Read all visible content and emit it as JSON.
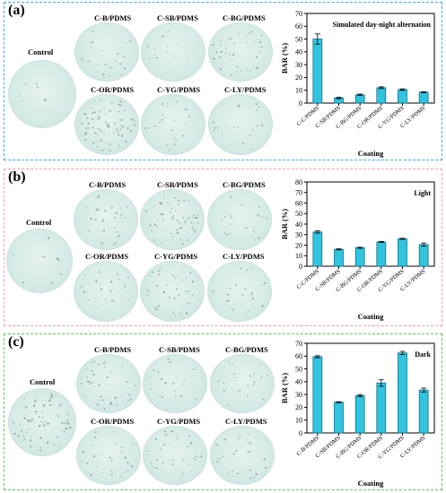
{
  "colors": {
    "panel_a_border": "#3fa9e6",
    "panel_b_border": "#ef9bbf",
    "panel_c_border": "#64c26a",
    "bar_fill": "#31c4df",
    "bar_stroke": "#0f6f86",
    "colony_dot": "#7e958e"
  },
  "panels": [
    {
      "tag": "(a)",
      "control_label": "Control",
      "dish_labels": [
        "C-B/PDMS",
        "C-SB/PDMS",
        "C-BG/PDMS",
        "C-OR/PDMS",
        "C-YG/PDMS",
        "C-LY/PDMS"
      ],
      "dish_density": [
        6,
        22,
        14,
        40,
        85,
        25,
        20
      ]
    },
    {
      "tag": "(b)",
      "control_label": "Control",
      "dish_labels": [
        "C-B/PDMS",
        "C-SB/PDMS",
        "C-BG/PDMS",
        "C-OR/PDMS",
        "C-YG/PDMS",
        "C-LY/PDMS"
      ],
      "dish_density": [
        10,
        30,
        60,
        20,
        25,
        40,
        22
      ]
    },
    {
      "tag": "(c)",
      "control_label": "Control",
      "dish_labels": [
        "C-B/PDMS",
        "C-SB/PDMS",
        "C-BG/PDMS",
        "C-OR/PDMS",
        "C-YG/PDMS",
        "C-LY/PDMS"
      ],
      "dish_density": [
        70,
        40,
        20,
        20,
        30,
        35,
        25
      ]
    }
  ],
  "chart_data": [
    {
      "type": "bar",
      "title": "Simulated day-night alternation",
      "xlabel": "Coating",
      "ylabel": "BAR (%)",
      "ylim": [
        0,
        70
      ],
      "yticks": [
        0,
        10,
        20,
        30,
        40,
        50,
        60,
        70
      ],
      "categories": [
        "C-C/PDMS",
        "C-SB/PDMS",
        "C-BG/PDMS",
        "C-OR/PDMS",
        "C-YG/PDMS",
        "C-LY/PDMS"
      ],
      "values": [
        50,
        4,
        6.5,
        12,
        10.5,
        8.5
      ],
      "errors": [
        4,
        0.6,
        0.5,
        0.7,
        0.6,
        0.4
      ],
      "grid": false
    },
    {
      "type": "bar",
      "title": "Light",
      "xlabel": "Coating",
      "ylabel": "BAR (%)",
      "ylim": [
        0,
        80
      ],
      "yticks": [
        0,
        10,
        20,
        30,
        40,
        50,
        60,
        70,
        80
      ],
      "categories": [
        "C-C/PDMS",
        "C-SB/PDMS",
        "C-BG/PDMS",
        "C-OR/PDMS",
        "C-YG/PDMS",
        "C-LY/PDMS"
      ],
      "values": [
        32.5,
        16,
        17.5,
        23,
        26,
        20.5
      ],
      "errors": [
        1,
        0.5,
        0.5,
        0.5,
        0.5,
        1.5
      ],
      "grid": false
    },
    {
      "type": "bar",
      "title": "Dark",
      "xlabel": "Coating",
      "ylabel": "BAR (%)",
      "ylim": [
        0,
        70
      ],
      "yticks": [
        0,
        10,
        20,
        30,
        40,
        50,
        60,
        70
      ],
      "categories": [
        "C-B/PDMS",
        "C-SB/PDMS",
        "C-BG/PDMS",
        "C-OR/PDMS",
        "C-YG/PDMS",
        "C-LY/PDMS"
      ],
      "values": [
        59.5,
        24,
        29,
        39,
        62.5,
        33.5
      ],
      "errors": [
        0.8,
        0.4,
        0.8,
        2.5,
        1.2,
        1.5
      ],
      "grid": false
    }
  ]
}
